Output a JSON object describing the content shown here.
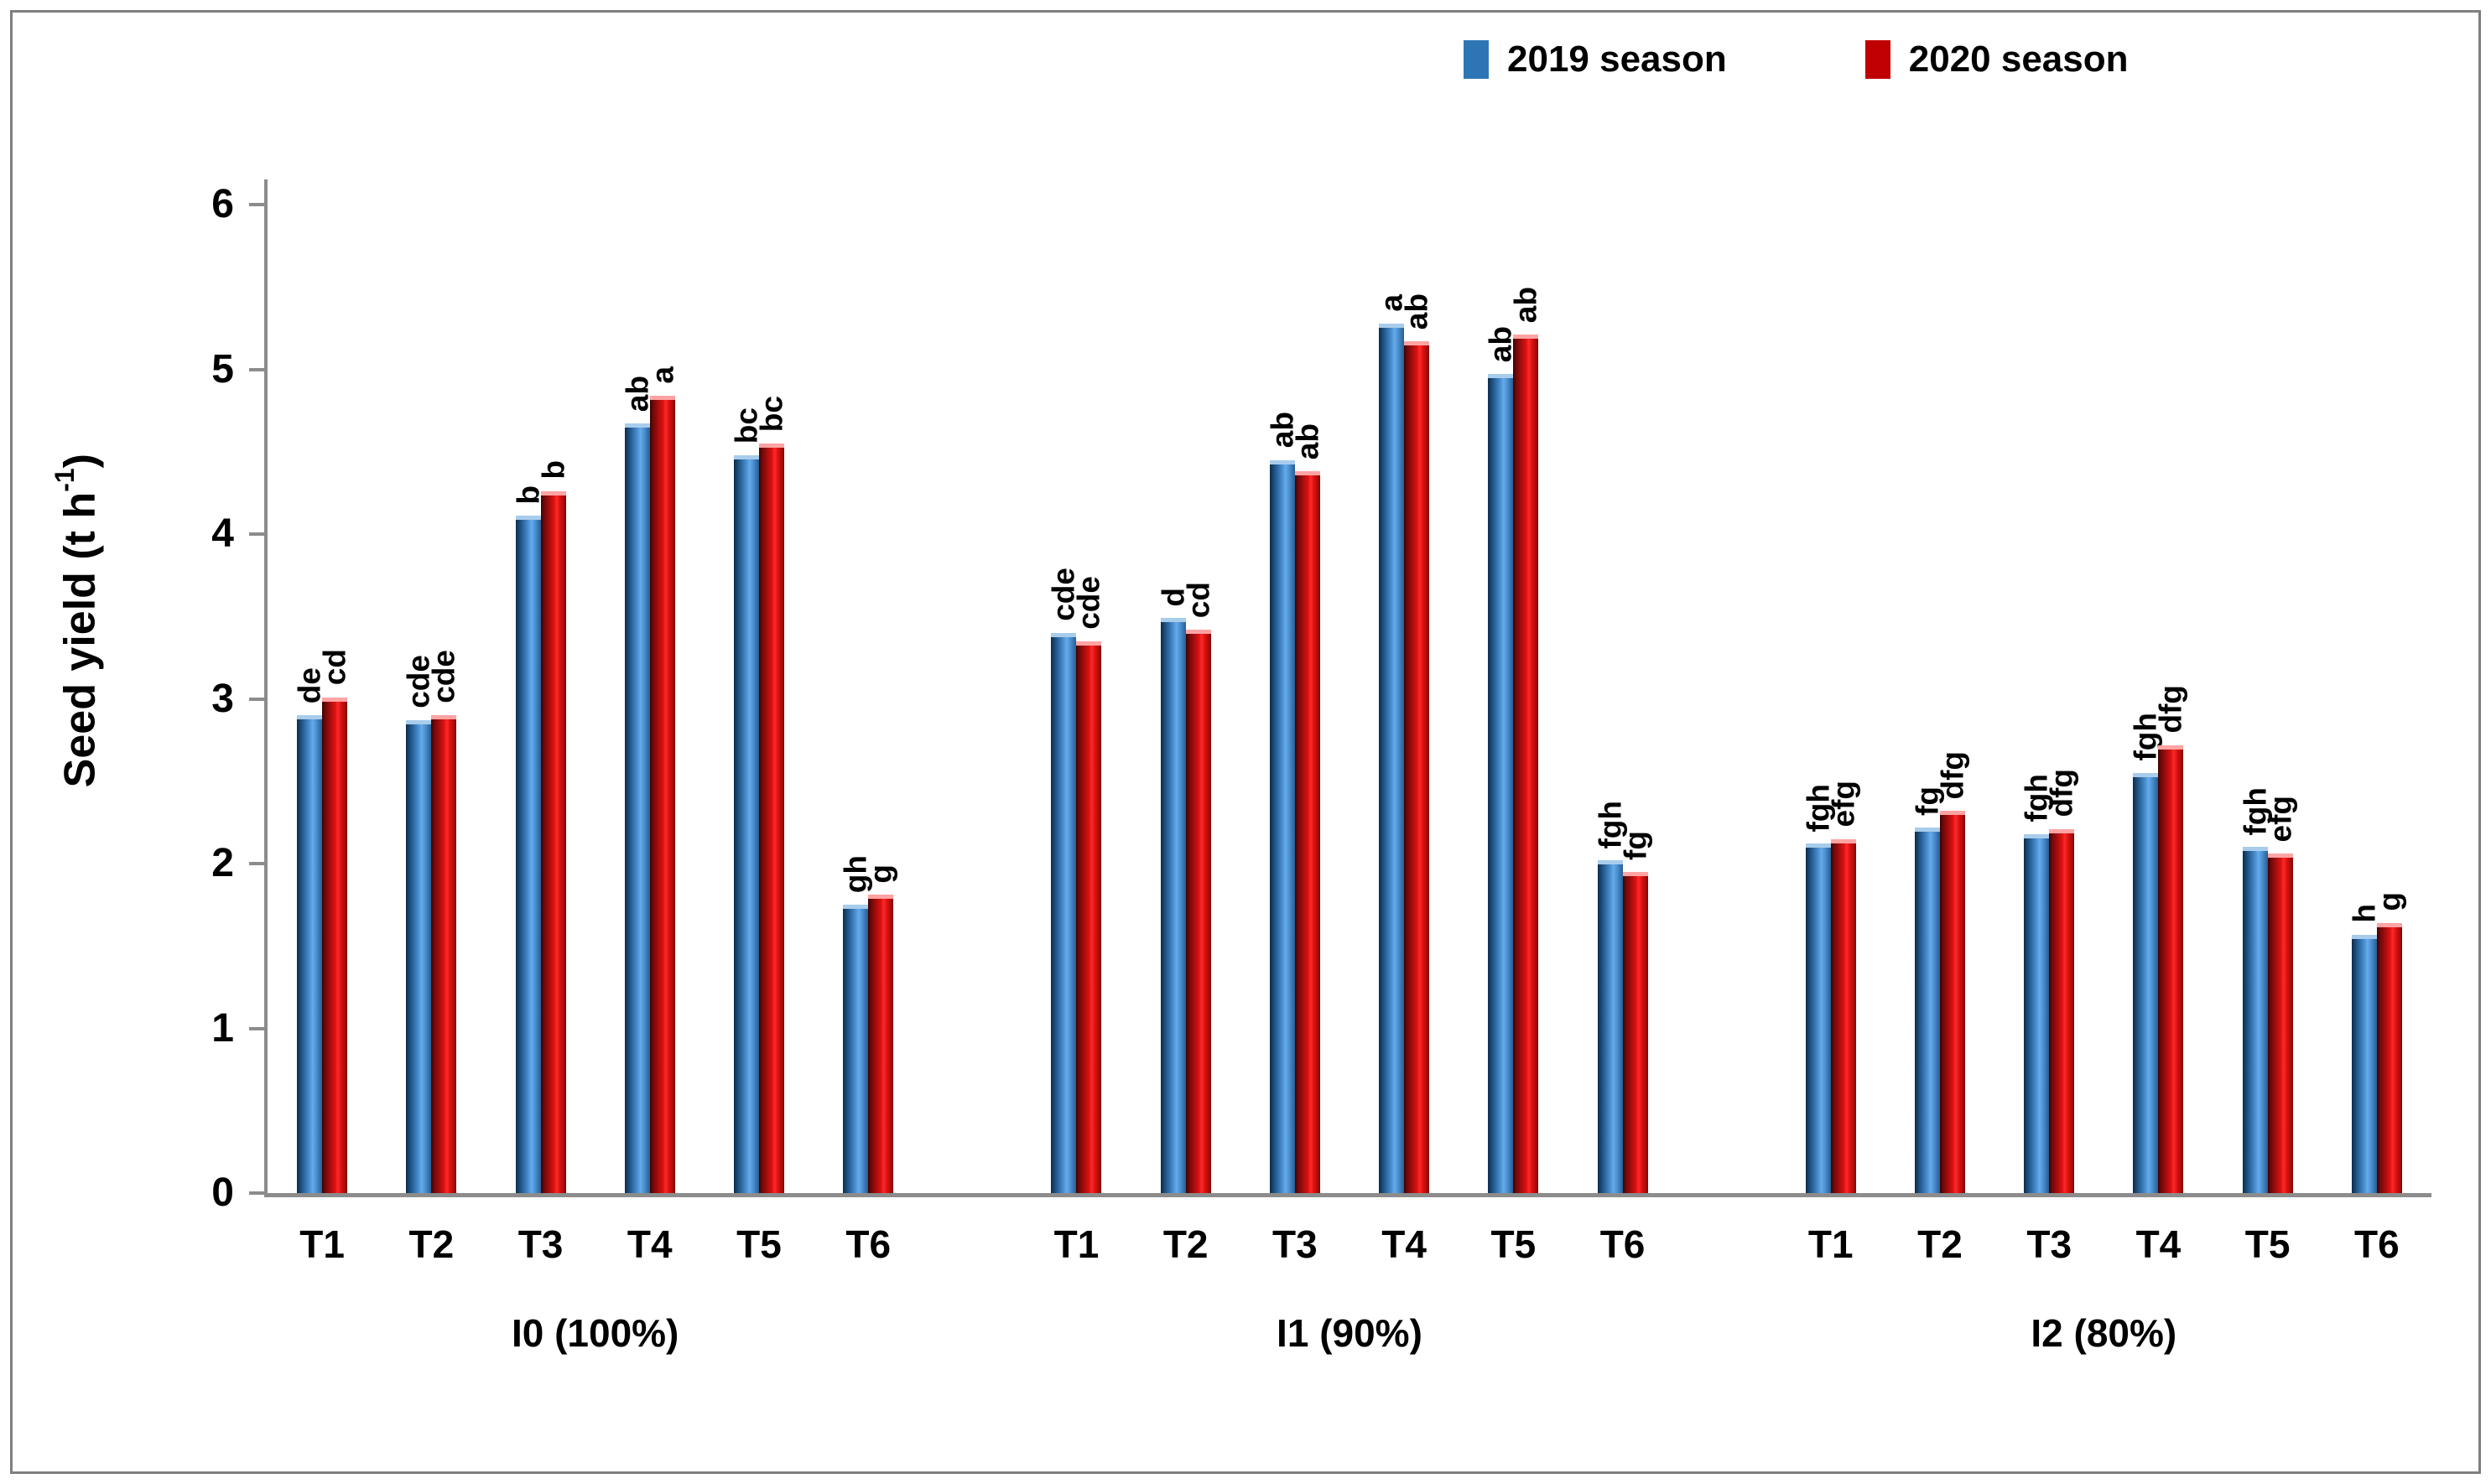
{
  "legend": {
    "items": [
      {
        "label": "2019 season",
        "color": "#2E75B6"
      },
      {
        "label": "2020 season",
        "color": "#C00000"
      }
    ]
  },
  "y_axis": {
    "title_main": "Seed yield (t h",
    "title_sup": "-1",
    "title_close": ")",
    "min": 0,
    "max": 6,
    "ticks": [
      0,
      1,
      2,
      3,
      4,
      5,
      6
    ]
  },
  "chart_data": {
    "type": "bar",
    "title": "",
    "xlabel": "",
    "ylabel": "Seed yield (t h-1)",
    "ylim": [
      0,
      6
    ],
    "grid": false,
    "legend_position": "top-right",
    "series_names": [
      "2019 season",
      "2020 season"
    ],
    "groups": [
      {
        "label": "I0 (100%)",
        "categories": [
          "T1",
          "T2",
          "T3",
          "T4",
          "T5",
          "T6"
        ],
        "series": [
          {
            "name": "2019 season",
            "values": [
              2.9,
              2.87,
              4.11,
              4.67,
              4.48,
              1.75
            ],
            "letters": [
              "de",
              "cde",
              "b",
              "ab",
              "bc",
              "gh"
            ]
          },
          {
            "name": "2020 season",
            "values": [
              3.01,
              2.9,
              4.26,
              4.84,
              4.55,
              1.81
            ],
            "letters": [
              "cd",
              "cde",
              "b",
              "a",
              "bc",
              "g"
            ]
          }
        ]
      },
      {
        "label": "I1 (90%)",
        "categories": [
          "T1",
          "T2",
          "T3",
          "T4",
          "T5",
          "T6"
        ],
        "series": [
          {
            "name": "2019 season",
            "values": [
              3.4,
              3.49,
              4.45,
              5.28,
              4.97,
              2.02
            ],
            "letters": [
              "cde",
              "d",
              "ab",
              "a",
              "ab",
              "fgh"
            ]
          },
          {
            "name": "2020 season",
            "values": [
              3.35,
              3.42,
              4.38,
              5.17,
              5.21,
              1.95
            ],
            "letters": [
              "cde",
              "cd",
              "ab",
              "ab",
              "ab",
              "fg"
            ]
          }
        ]
      },
      {
        "label": "I2 (80%)",
        "categories": [
          "T1",
          "T2",
          "T3",
          "T4",
          "T5",
          "T6"
        ],
        "series": [
          {
            "name": "2019 season",
            "values": [
              2.12,
              2.22,
              2.18,
              2.55,
              2.1,
              1.57
            ],
            "letters": [
              "fgh",
              "fg",
              "fgh",
              "fgh",
              "fgh",
              "h"
            ]
          },
          {
            "name": "2020 season",
            "values": [
              2.15,
              2.32,
              2.21,
              2.72,
              2.06,
              1.64
            ],
            "letters": [
              "efg",
              "dfg",
              "dfg",
              "dfg",
              "efg",
              "g"
            ]
          }
        ]
      }
    ]
  }
}
